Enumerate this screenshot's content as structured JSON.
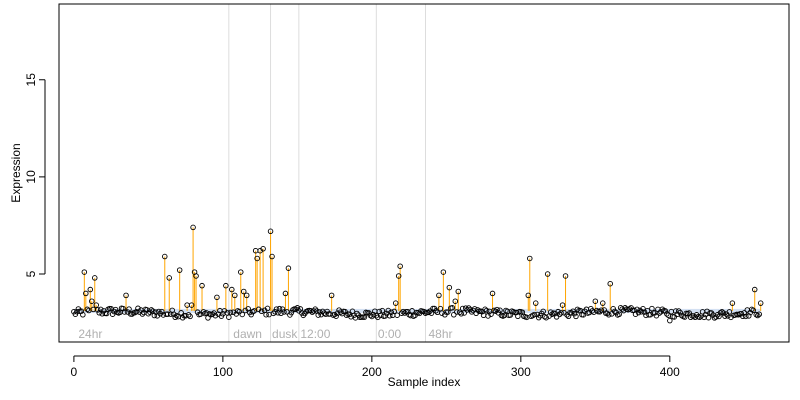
{
  "chart_data": {
    "type": "scatter",
    "title": "",
    "xlabel": "Sample index",
    "ylabel": "Expression",
    "xlim": [
      -10,
      480
    ],
    "ylim": [
      1.5,
      18.9
    ],
    "x_ticks": [
      0,
      100,
      200,
      300,
      400
    ],
    "y_ticks": [
      5,
      10,
      15
    ],
    "grid": false,
    "legend": "none",
    "baseline": 3.1,
    "colors": {
      "points": "#000000",
      "spikes": "#ffa500",
      "baseline_band": "#aec7e8",
      "vlines": "#dddddd",
      "annotations": "#b0b0b0"
    },
    "vlines": [
      104,
      132,
      151,
      203,
      236
    ],
    "annotations": [
      {
        "text": "24hr",
        "x": 3,
        "y": 2.0
      },
      {
        "text": "dawn",
        "x": 107,
        "y": 2.0
      },
      {
        "text": "dusk",
        "x": 133,
        "y": 2.0
      },
      {
        "text": "12:00",
        "x": 152,
        "y": 2.0
      },
      {
        "text": "0:00",
        "x": 204,
        "y": 2.0
      },
      {
        "text": "48hr",
        "x": 238,
        "y": 2.0
      }
    ],
    "spike_points": [
      [
        7,
        5.1
      ],
      [
        8,
        4.0
      ],
      [
        11,
        4.2
      ],
      [
        12,
        3.6
      ],
      [
        14,
        4.8
      ],
      [
        15,
        3.4
      ],
      [
        35,
        3.9
      ],
      [
        61,
        5.9
      ],
      [
        64,
        4.8
      ],
      [
        71,
        5.2
      ],
      [
        76,
        3.4
      ],
      [
        79,
        3.4
      ],
      [
        80,
        7.4
      ],
      [
        81,
        5.1
      ],
      [
        82,
        4.9
      ],
      [
        86,
        4.4
      ],
      [
        96,
        3.8
      ],
      [
        102,
        4.4
      ],
      [
        106,
        4.2
      ],
      [
        108,
        3.9
      ],
      [
        112,
        5.1
      ],
      [
        114,
        4.1
      ],
      [
        116,
        3.9
      ],
      [
        122,
        6.2
      ],
      [
        123,
        5.8
      ],
      [
        125,
        6.2
      ],
      [
        127,
        6.3
      ],
      [
        132,
        7.2
      ],
      [
        133,
        5.9
      ],
      [
        142,
        4.0
      ],
      [
        144,
        5.3
      ],
      [
        173,
        3.9
      ],
      [
        216,
        3.5
      ],
      [
        218,
        4.9
      ],
      [
        219,
        5.4
      ],
      [
        245,
        3.9
      ],
      [
        248,
        5.1
      ],
      [
        252,
        4.3
      ],
      [
        256,
        3.6
      ],
      [
        258,
        4.1
      ],
      [
        281,
        4.0
      ],
      [
        305,
        3.9
      ],
      [
        306,
        5.8
      ],
      [
        310,
        3.5
      ],
      [
        318,
        5.0
      ],
      [
        328,
        3.4
      ],
      [
        330,
        4.9
      ],
      [
        350,
        3.6
      ],
      [
        355,
        3.5
      ],
      [
        360,
        4.5
      ],
      [
        442,
        3.5
      ],
      [
        457,
        4.2
      ],
      [
        461,
        3.5
      ]
    ],
    "low_points": [
      [
        400,
        2.6
      ],
      [
        418,
        2.9
      ],
      [
        432,
        2.9
      ],
      [
        446,
        2.9
      ],
      [
        450,
        3.0
      ]
    ]
  }
}
